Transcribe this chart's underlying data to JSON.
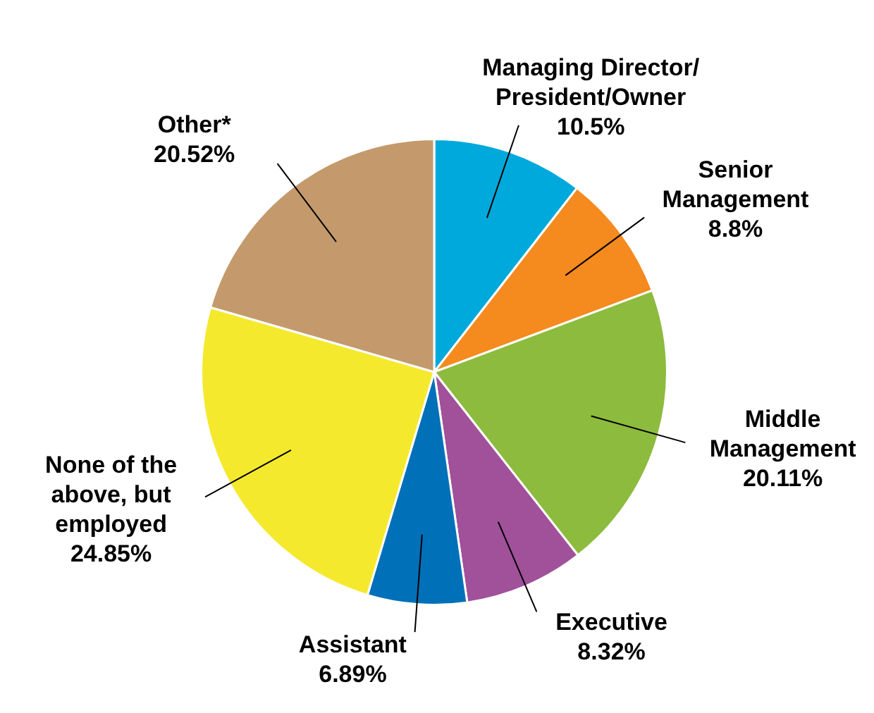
{
  "chart_data": {
    "type": "pie",
    "categories": [
      "Managing Director/\nPresident/Owner",
      "Senior\nManagement",
      "Middle\nManagement",
      "Executive",
      "Assistant",
      "None of the\nabove, but\nemployed",
      "Other*"
    ],
    "values": [
      10.5,
      8.8,
      20.11,
      8.32,
      6.89,
      24.85,
      20.52
    ],
    "value_labels": [
      "10.5%",
      "8.8%",
      "20.11%",
      "8.32%",
      "6.89%",
      "24.85%",
      "20.52%"
    ],
    "colors": [
      "#00a9dc",
      "#f58a1f",
      "#8dbb3e",
      "#a0519a",
      "#0070b8",
      "#f5e92e",
      "#c49a6c"
    ],
    "legend": false
  }
}
